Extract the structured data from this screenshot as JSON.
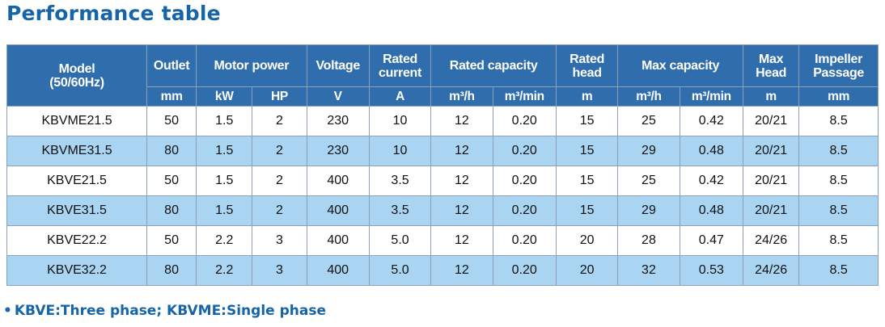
{
  "title": "Performance table",
  "header": {
    "model": "Model",
    "model_sub": "(50/60Hz)",
    "outlet": "Outlet",
    "motor_power": "Motor power",
    "voltage": "Voltage",
    "rated_current": [
      "Rated",
      "current"
    ],
    "rated_capacity": "Rated capacity",
    "rated_head": [
      "Rated",
      "head"
    ],
    "max_capacity": "Max capacity",
    "max_head": [
      "Max",
      "Head"
    ],
    "impeller_passage": [
      "Impeller",
      "Passage"
    ]
  },
  "units": [
    "mm",
    "kW",
    "HP",
    "V",
    "A",
    "m³/h",
    "m³/min",
    "m",
    "m³/h",
    "m³/min",
    "m",
    "mm"
  ],
  "rows": [
    [
      "KBVME21.5",
      "50",
      "1.5",
      "2",
      "230",
      "10",
      "12",
      "0.20",
      "15",
      "25",
      "0.42",
      "20/21",
      "8.5"
    ],
    [
      "KBVME31.5",
      "80",
      "1.5",
      "2",
      "230",
      "10",
      "12",
      "0.20",
      "15",
      "29",
      "0.48",
      "20/21",
      "8.5"
    ],
    [
      "KBVE21.5",
      "50",
      "1.5",
      "2",
      "400",
      "3.5",
      "12",
      "0.20",
      "15",
      "25",
      "0.42",
      "20/21",
      "8.5"
    ],
    [
      "KBVE31.5",
      "80",
      "1.5",
      "2",
      "400",
      "3.5",
      "12",
      "0.20",
      "15",
      "29",
      "0.48",
      "20/21",
      "8.5"
    ],
    [
      "KBVE22.2",
      "50",
      "2.2",
      "3",
      "400",
      "5.0",
      "12",
      "0.20",
      "20",
      "28",
      "0.47",
      "24/26",
      "8.5"
    ],
    [
      "KBVE32.2",
      "80",
      "2.2",
      "3",
      "400",
      "5.0",
      "12",
      "0.20",
      "20",
      "32",
      "0.53",
      "24/26",
      "8.5"
    ]
  ],
  "note": {
    "bullet": "•",
    "text": "KBVE:Three phase; KBVME:Single phase"
  },
  "colors": {
    "title": "#1565a8",
    "header_bg": "#2f6dad",
    "alt_row": "#a9d4f2",
    "border": "#8da0b5"
  }
}
